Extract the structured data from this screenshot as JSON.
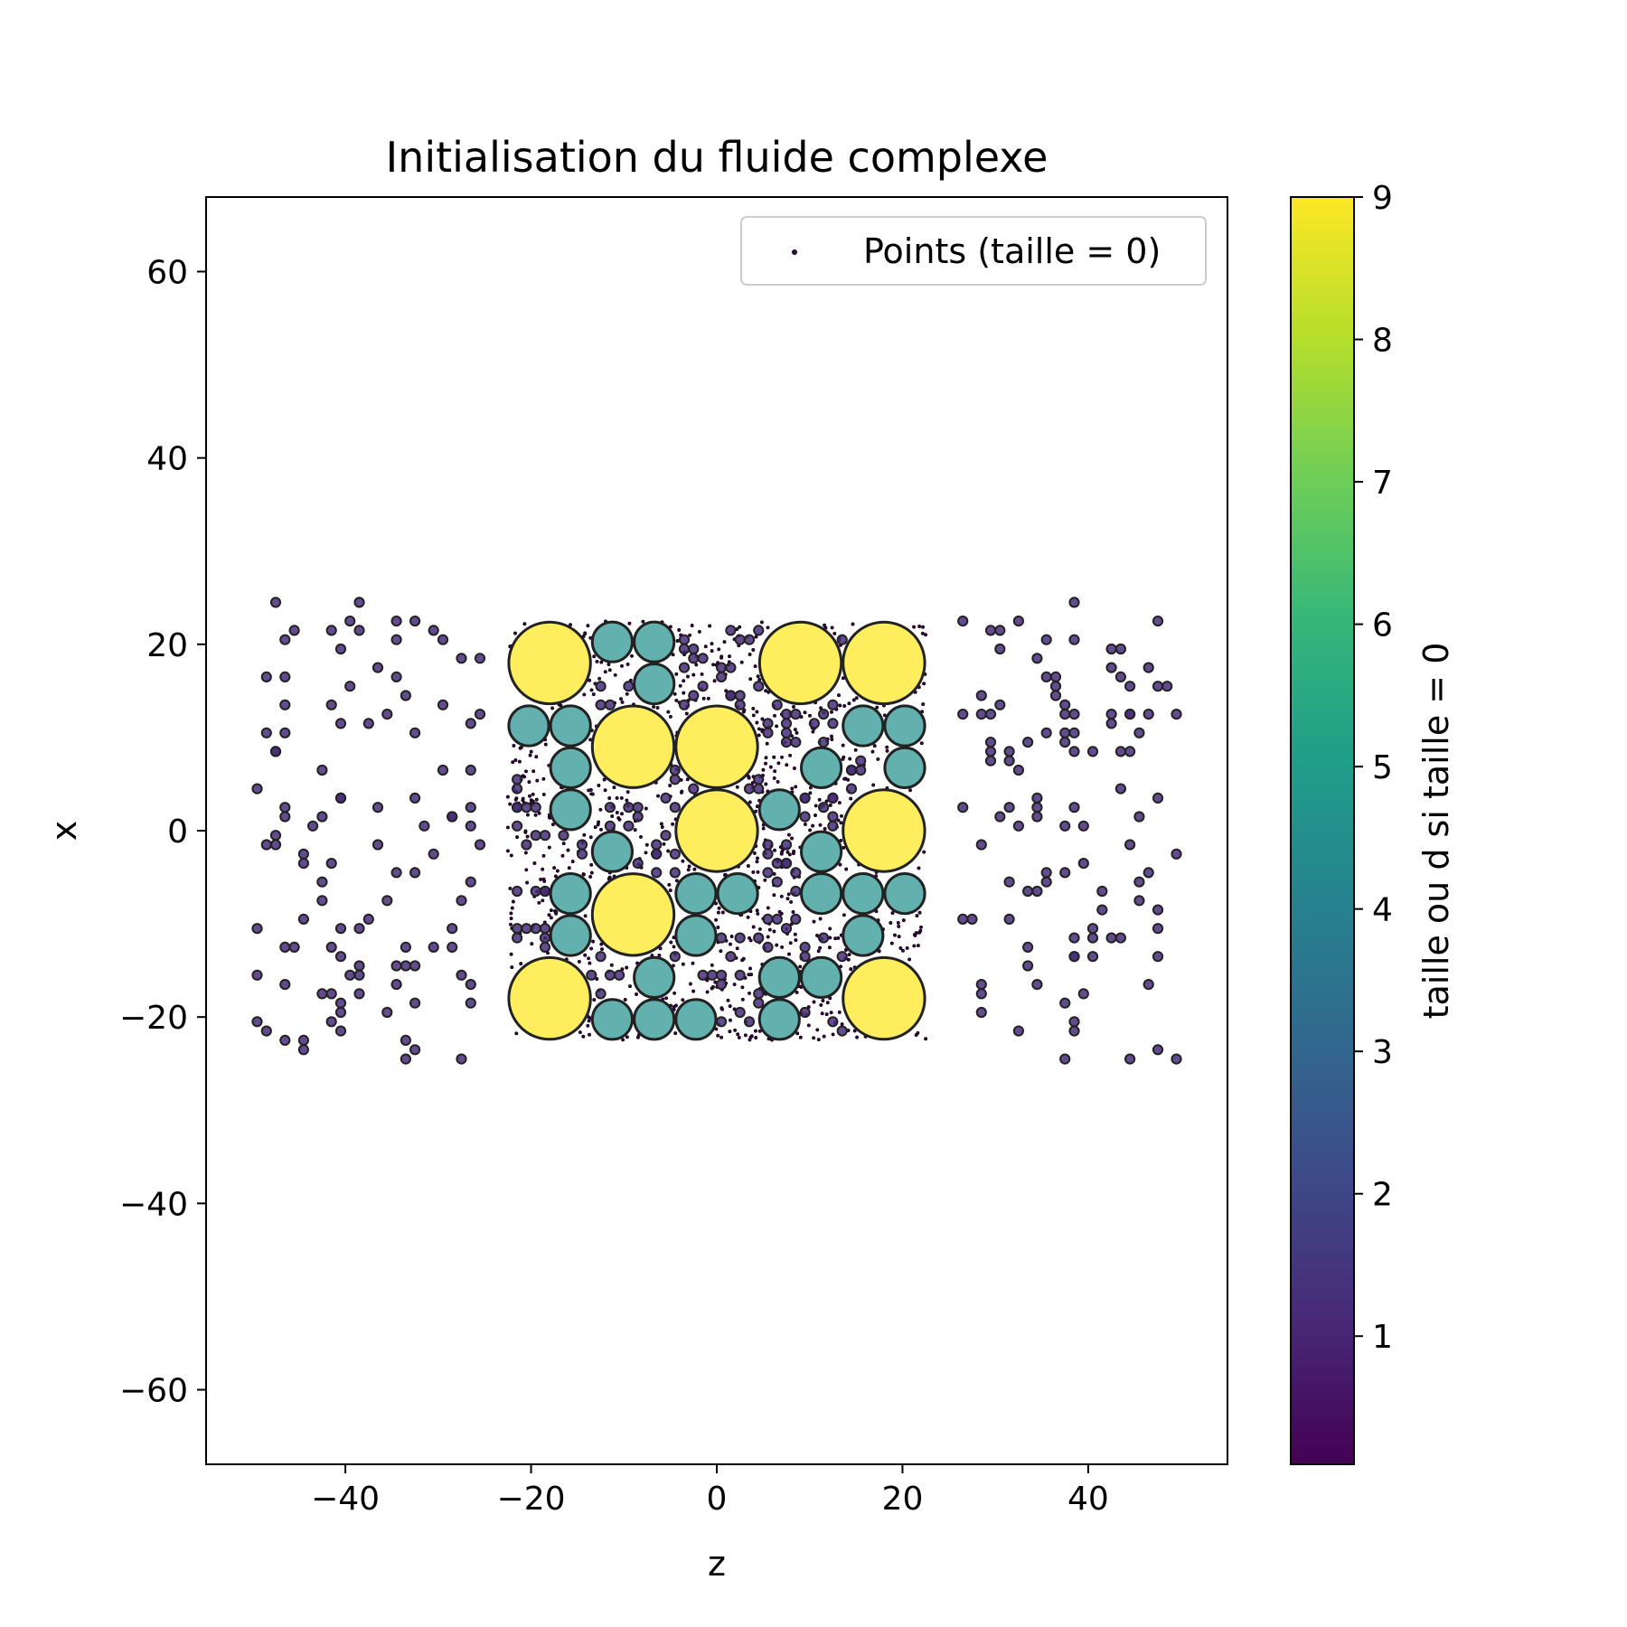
{
  "chart_data": {
    "type": "scatter",
    "title": "Initialisation du fluide complexe",
    "xlabel": "z",
    "ylabel": "x",
    "xlim": [
      -55,
      55
    ],
    "ylim": [
      -68,
      68
    ],
    "xticks": [
      {
        "value": -40,
        "label": "−40"
      },
      {
        "value": -20,
        "label": "−20"
      },
      {
        "value": 0,
        "label": "0"
      },
      {
        "value": 20,
        "label": "20"
      },
      {
        "value": 40,
        "label": "40"
      }
    ],
    "yticks": [
      {
        "value": 60,
        "label": "60"
      },
      {
        "value": 40,
        "label": "40"
      },
      {
        "value": 20,
        "label": "20"
      },
      {
        "value": 0,
        "label": "0"
      },
      {
        "value": -20,
        "label": "−20"
      },
      {
        "value": -40,
        "label": "−40"
      },
      {
        "value": -60,
        "label": "−60"
      }
    ],
    "grid": false,
    "legend": {
      "placement": "top-right",
      "entries": [
        {
          "label": "Points (taille = 0)"
        }
      ]
    },
    "colorbar": {
      "label": "taille ou d si taille = 0",
      "range": [
        0.1,
        9
      ],
      "ticks": [
        {
          "value": 1,
          "label": "1"
        },
        {
          "value": 2,
          "label": "2"
        },
        {
          "value": 3,
          "label": "3"
        },
        {
          "value": 4,
          "label": "4"
        },
        {
          "value": 5,
          "label": "5"
        },
        {
          "value": 6,
          "label": "6"
        },
        {
          "value": 7,
          "label": "7"
        },
        {
          "value": 8,
          "label": "8"
        },
        {
          "value": 9,
          "label": "9"
        }
      ],
      "colormap": [
        "#440154",
        "#482878",
        "#3e4989",
        "#31688e",
        "#26828e",
        "#1f9e89",
        "#35b779",
        "#6ece58",
        "#b5de2b",
        "#fde725"
      ]
    },
    "large_particles": {
      "size": 9,
      "diameter": 9,
      "color": "#fde725",
      "centers": [
        [
          -18,
          18
        ],
        [
          9,
          18
        ],
        [
          18,
          18
        ],
        [
          -9,
          9
        ],
        [
          0,
          9
        ],
        [
          0,
          0
        ],
        [
          18,
          0
        ],
        [
          -9,
          -9
        ],
        [
          -18,
          -18
        ],
        [
          18,
          -18
        ]
      ]
    },
    "medium_particles": {
      "size": 4.5,
      "diameter": 4.5,
      "color": "#21908d",
      "centers": [
        [
          -11.25,
          20.25
        ],
        [
          -6.75,
          20.25
        ],
        [
          -6.75,
          15.75
        ],
        [
          -20.25,
          11.25
        ],
        [
          -15.75,
          11.25
        ],
        [
          15.75,
          11.25
        ],
        [
          20.25,
          11.25
        ],
        [
          -15.75,
          6.75
        ],
        [
          11.25,
          6.75
        ],
        [
          20.25,
          6.75
        ],
        [
          -15.75,
          2.25
        ],
        [
          6.75,
          2.25
        ],
        [
          -11.25,
          -2.25
        ],
        [
          11.25,
          -2.25
        ],
        [
          -15.75,
          -6.75
        ],
        [
          -2.25,
          -6.75
        ],
        [
          2.25,
          -6.75
        ],
        [
          11.25,
          -6.75
        ],
        [
          15.75,
          -6.75
        ],
        [
          20.25,
          -6.75
        ],
        [
          -15.75,
          -11.25
        ],
        [
          -2.25,
          -11.25
        ],
        [
          15.75,
          -11.25
        ],
        [
          -6.75,
          -15.75
        ],
        [
          6.75,
          -15.75
        ],
        [
          11.25,
          -15.75
        ],
        [
          -11.25,
          -20.25
        ],
        [
          -6.75,
          -20.25
        ],
        [
          -2.25,
          -20.25
        ],
        [
          6.75,
          -20.25
        ]
      ]
    },
    "small_particles": {
      "size": 1,
      "diameter": 1,
      "color": "#472c7a",
      "z_ranges": [
        [
          -50,
          -25
        ],
        [
          26,
          50
        ]
      ],
      "x_range": [
        -25,
        25
      ],
      "count": 220
    },
    "points": {
      "size": 0,
      "label": "Points (taille = 0)",
      "region": {
        "z": [
          -22.5,
          22.5
        ],
        "x": [
          -22.5,
          22.5
        ]
      },
      "count": 1600
    }
  }
}
